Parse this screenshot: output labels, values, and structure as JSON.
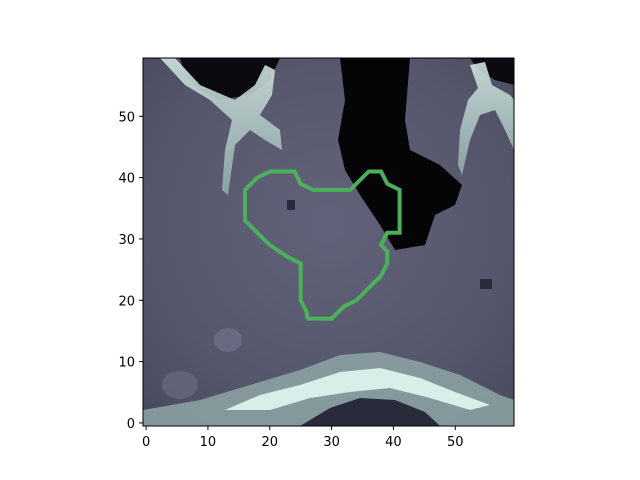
{
  "figure": {
    "image_kind": "grayscale CT slice with colormap bone, green contour overlay"
  },
  "axes": {
    "x_ticks": [
      "0",
      "10",
      "20",
      "30",
      "40",
      "50"
    ],
    "y_ticks": [
      "0",
      "10",
      "20",
      "30",
      "40",
      "50"
    ],
    "x_range": [
      -0.5,
      59.5
    ],
    "y_range": [
      59.5,
      -0.5
    ],
    "x_tick_values": [
      0,
      10,
      20,
      30,
      40,
      50
    ],
    "y_tick_values": [
      0,
      10,
      20,
      30,
      40,
      50
    ]
  },
  "contour": {
    "color": "#4cb05a",
    "points": [
      [
        26,
        17
      ],
      [
        30,
        17
      ],
      [
        32,
        19
      ],
      [
        34,
        20
      ],
      [
        36,
        22
      ],
      [
        38,
        24
      ],
      [
        39,
        26
      ],
      [
        39,
        28
      ],
      [
        38,
        29
      ],
      [
        39,
        31
      ],
      [
        41,
        31
      ],
      [
        41,
        38
      ],
      [
        39,
        39
      ],
      [
        38,
        41
      ],
      [
        36,
        41
      ],
      [
        34,
        39
      ],
      [
        33,
        38
      ],
      [
        27,
        38
      ],
      [
        25,
        39
      ],
      [
        24,
        41
      ],
      [
        20,
        41
      ],
      [
        18,
        40
      ],
      [
        16,
        38
      ],
      [
        16,
        33
      ],
      [
        18,
        31
      ],
      [
        20,
        29
      ],
      [
        23,
        27
      ],
      [
        25,
        26
      ],
      [
        25,
        20
      ],
      [
        26,
        18
      ],
      [
        26,
        17
      ]
    ]
  },
  "colors": {
    "axis": "#000000",
    "background": "#ffffff"
  }
}
